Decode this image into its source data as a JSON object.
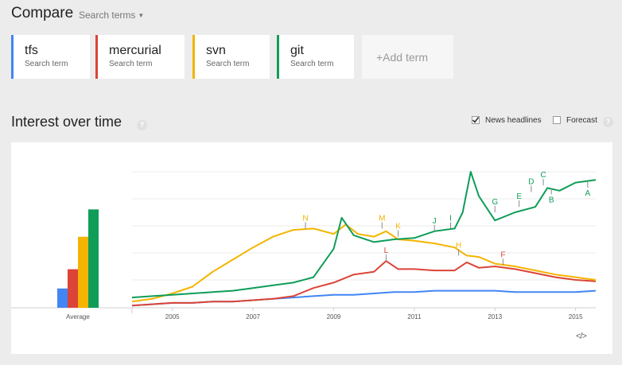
{
  "header": {
    "title": "Compare",
    "search_terms_label": "Search terms"
  },
  "terms": [
    {
      "name": "tfs",
      "sub": "Search term",
      "color": "#4285f4"
    },
    {
      "name": "mercurial",
      "sub": "Search term",
      "color": "#db4437"
    },
    {
      "name": "svn",
      "sub": "Search term",
      "color": "#f4b400"
    },
    {
      "name": "git",
      "sub": "Search term",
      "color": "#0f9d58"
    }
  ],
  "add_term_label": "+Add term",
  "section": {
    "title": "Interest over time",
    "help": "?"
  },
  "options": {
    "news_headlines_label": "News headlines",
    "news_headlines_checked": true,
    "forecast_label": "Forecast",
    "forecast_checked": false
  },
  "chart_data": {
    "type": "line",
    "average_label": "Average",
    "averages": [
      {
        "term": "tfs",
        "value": 19,
        "color": "#4285f4"
      },
      {
        "term": "mercurial",
        "value": 38,
        "color": "#db4437"
      },
      {
        "term": "svn",
        "value": 70,
        "color": "#f4b400"
      },
      {
        "term": "git",
        "value": 97,
        "color": "#0f9d58"
      }
    ],
    "x_ticks": [
      "2005",
      "2007",
      "2009",
      "2011",
      "2013",
      "2015"
    ],
    "x_tick_values": [
      2005,
      2007,
      2009,
      2011,
      2013,
      2015
    ],
    "x_range": [
      2004.0,
      2015.5
    ],
    "y_range": [
      0,
      100
    ],
    "grid": true,
    "series": [
      {
        "name": "tfs",
        "color": "#4285f4",
        "x": [
          2004.0,
          2004.5,
          2005.0,
          2005.5,
          2006.0,
          2006.5,
          2007.0,
          2007.5,
          2008.0,
          2008.5,
          2009.0,
          2009.5,
          2010.0,
          2010.5,
          2011.0,
          2011.5,
          2012.0,
          2012.5,
          2013.0,
          2013.5,
          2014.0,
          2014.5,
          2015.0,
          2015.5
        ],
        "y": [
          1,
          2,
          3,
          3,
          4,
          4,
          5,
          6,
          7,
          8,
          9,
          9,
          10,
          11,
          11,
          12,
          12,
          12,
          12,
          11,
          11,
          11,
          11,
          12
        ]
      },
      {
        "name": "mercurial",
        "color": "#db4437",
        "x": [
          2004.0,
          2004.5,
          2005.0,
          2005.5,
          2006.0,
          2006.5,
          2007.0,
          2007.5,
          2008.0,
          2008.5,
          2009.0,
          2009.5,
          2010.0,
          2010.3,
          2010.6,
          2011.0,
          2011.5,
          2012.0,
          2012.3,
          2012.6,
          2013.0,
          2013.5,
          2014.0,
          2014.5,
          2015.0,
          2015.5
        ],
        "y": [
          1,
          2,
          3,
          3,
          4,
          4,
          5,
          6,
          8,
          14,
          18,
          24,
          26,
          34,
          28,
          28,
          27,
          27,
          33,
          29,
          30,
          28,
          25,
          22,
          20,
          19
        ]
      },
      {
        "name": "svn",
        "color": "#f4b400",
        "x": [
          2004.0,
          2004.5,
          2005.0,
          2005.5,
          2006.0,
          2006.5,
          2007.0,
          2007.5,
          2008.0,
          2008.5,
          2009.0,
          2009.3,
          2009.6,
          2010.0,
          2010.3,
          2010.6,
          2011.0,
          2011.5,
          2012.0,
          2012.3,
          2012.6,
          2013.0,
          2013.5,
          2014.0,
          2014.5,
          2015.0,
          2015.5
        ],
        "y": [
          4,
          6,
          10,
          15,
          26,
          35,
          44,
          52,
          57,
          58,
          54,
          61,
          54,
          52,
          56,
          50,
          49,
          47,
          44,
          38,
          37,
          32,
          30,
          27,
          24,
          22,
          20
        ]
      },
      {
        "name": "git",
        "color": "#0f9d58",
        "x": [
          2004.0,
          2004.5,
          2005.0,
          2005.5,
          2006.0,
          2006.5,
          2007.0,
          2007.5,
          2008.0,
          2008.5,
          2009.0,
          2009.2,
          2009.5,
          2010.0,
          2010.5,
          2011.0,
          2011.5,
          2012.0,
          2012.2,
          2012.4,
          2012.6,
          2013.0,
          2013.5,
          2014.0,
          2014.3,
          2014.6,
          2015.0,
          2015.5
        ],
        "y": [
          7,
          8,
          9,
          10,
          11,
          12,
          14,
          16,
          18,
          22,
          43,
          66,
          53,
          48,
          50,
          51,
          56,
          58,
          70,
          100,
          82,
          64,
          70,
          74,
          88,
          86,
          92,
          94
        ]
      }
    ],
    "annotations": [
      {
        "label": "N",
        "x": 2008.3,
        "y": 58,
        "color": "#f4b400",
        "pos": "above"
      },
      {
        "label": "M",
        "x": 2010.2,
        "y": 58,
        "color": "#f4b400",
        "pos": "above"
      },
      {
        "label": "K",
        "x": 2010.6,
        "y": 52,
        "color": "#f4b400",
        "pos": "above"
      },
      {
        "label": "L",
        "x": 2010.3,
        "y": 34,
        "color": "#db4437",
        "pos": "above"
      },
      {
        "label": "J",
        "x": 2011.5,
        "y": 56,
        "color": "#0f9d58",
        "pos": "above"
      },
      {
        "label": "I",
        "x": 2011.9,
        "y": 58,
        "color": "#0f9d58",
        "pos": "above"
      },
      {
        "label": "H",
        "x": 2012.1,
        "y": 38,
        "color": "#f4b400",
        "pos": "above"
      },
      {
        "label": "G",
        "x": 2013.0,
        "y": 70,
        "color": "#0f9d58",
        "pos": "above"
      },
      {
        "label": "F",
        "x": 2013.2,
        "y": 31,
        "color": "#db4437",
        "pos": "above"
      },
      {
        "label": "E",
        "x": 2013.6,
        "y": 74,
        "color": "#0f9d58",
        "pos": "above"
      },
      {
        "label": "D",
        "x": 2013.9,
        "y": 85,
        "color": "#0f9d58",
        "pos": "above"
      },
      {
        "label": "C",
        "x": 2014.2,
        "y": 90,
        "color": "#0f9d58",
        "pos": "above"
      },
      {
        "label": "B",
        "x": 2014.4,
        "y": 88,
        "color": "#0f9d58",
        "pos": "below"
      },
      {
        "label": "A",
        "x": 2015.3,
        "y": 93,
        "color": "#0f9d58",
        "pos": "below"
      }
    ]
  },
  "embed_label": "</>"
}
